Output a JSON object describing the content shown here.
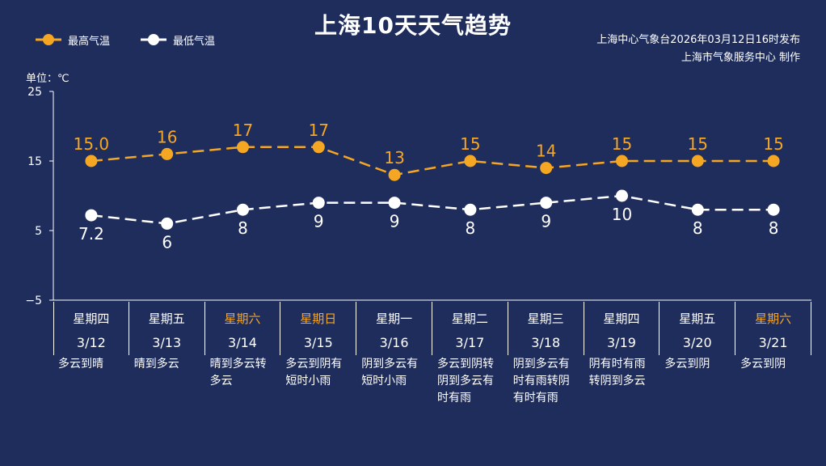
{
  "title": "上海10天天气趋势",
  "issuer": "上海中心气象台2026年03月12日16时发布",
  "maker": "上海市气象服务中心  制作",
  "colors": {
    "background": "#1f2d5c",
    "high": "#f5a623",
    "low": "#ffffff",
    "weekend": "#f5a623"
  },
  "chart_data": {
    "type": "line",
    "unit_label": "单位：℃",
    "ylim": [
      -5,
      25
    ],
    "yticks": [
      "25",
      "15",
      "5",
      "−5"
    ],
    "ytick_values": [
      25,
      15,
      5,
      -5
    ],
    "series": [
      {
        "name": "最高气温",
        "values": [
          15.0,
          16,
          17,
          17,
          13,
          15,
          14,
          15,
          15,
          15
        ],
        "labels": [
          "15.0",
          "16",
          "17",
          "17",
          "13",
          "15",
          "14",
          "15",
          "15",
          "15"
        ]
      },
      {
        "name": "最低气温",
        "values": [
          7.2,
          6,
          8,
          9,
          9,
          8,
          9,
          10,
          8,
          8
        ],
        "labels": [
          "7.2",
          "6",
          "8",
          "9",
          "9",
          "8",
          "9",
          "10",
          "8",
          "8"
        ]
      }
    ],
    "days": [
      {
        "weekday": "星期四",
        "date": "3/12",
        "weather": "多云到晴",
        "weekend": false
      },
      {
        "weekday": "星期五",
        "date": "3/13",
        "weather": "晴到多云",
        "weekend": false
      },
      {
        "weekday": "星期六",
        "date": "3/14",
        "weather": "晴到多云转多云",
        "weekend": true
      },
      {
        "weekday": "星期日",
        "date": "3/15",
        "weather": "多云到阴有短时小雨",
        "weekend": true
      },
      {
        "weekday": "星期一",
        "date": "3/16",
        "weather": "阴到多云有短时小雨",
        "weekend": false
      },
      {
        "weekday": "星期二",
        "date": "3/17",
        "weather": "多云到阴转阴到多云有时有雨",
        "weekend": false
      },
      {
        "weekday": "星期三",
        "date": "3/18",
        "weather": "阴到多云有时有雨转阴有时有雨",
        "weekend": false
      },
      {
        "weekday": "星期四",
        "date": "3/19",
        "weather": "阴有时有雨转阴到多云",
        "weekend": false
      },
      {
        "weekday": "星期五",
        "date": "3/20",
        "weather": "多云到阴",
        "weekend": false
      },
      {
        "weekday": "星期六",
        "date": "3/21",
        "weather": "多云到阴",
        "weekend": true
      }
    ]
  }
}
